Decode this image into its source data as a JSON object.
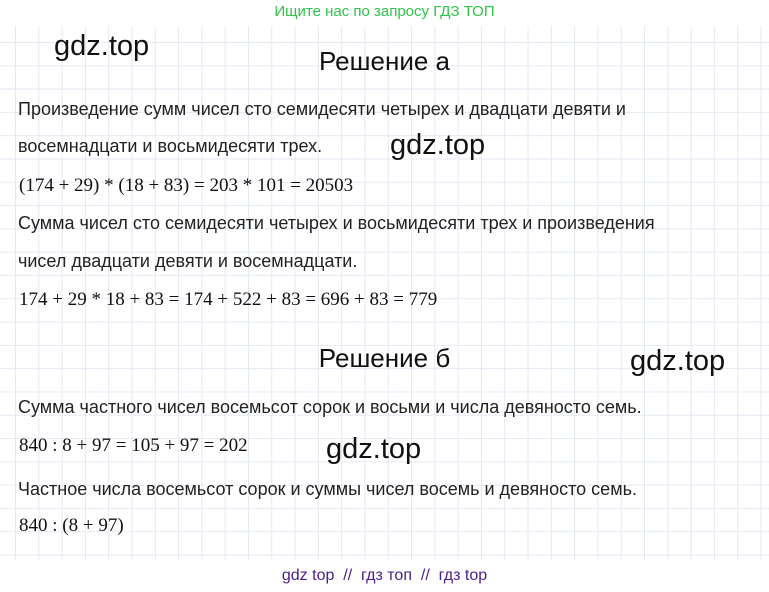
{
  "header_banner": "Ищите нас по запросу ГДЗ ТОП",
  "watermark": "gdz.top",
  "section_a": {
    "title": "Решение а",
    "lines": [
      "Произведение сумм чисел сто семидесяти четырех и двадцати девяти и",
      "восемнадцати и восьмидесяти трех.",
      "(174 + 29) * (18 + 83) = 203 * 101 = 20503",
      "Сумма чисел сто семидесяти четырех и восьмидесяти трех и произведения",
      "чисел двадцати девяти и восемнадцати.",
      "174 + 29 * 18 + 83 = 174 + 522 + 83 = 696 + 83 = 779"
    ]
  },
  "section_b": {
    "title": "Решение б",
    "lines": [
      "Сумма частного чисел восемьсот сорок и восьми и числа девяносто семь.",
      "840 : 8 + 97 = 105 + 97 = 202",
      "Частное числа восемьсот сорок и суммы чисел восемь и девяносто семь.",
      "840 : (8 + 97)"
    ]
  },
  "footer": "gdz top  //  гдз топ  //  гдз top",
  "colors": {
    "banner": "#2fc34a",
    "footer": "#4b1e8a",
    "grid": "#e3e9f3"
  }
}
